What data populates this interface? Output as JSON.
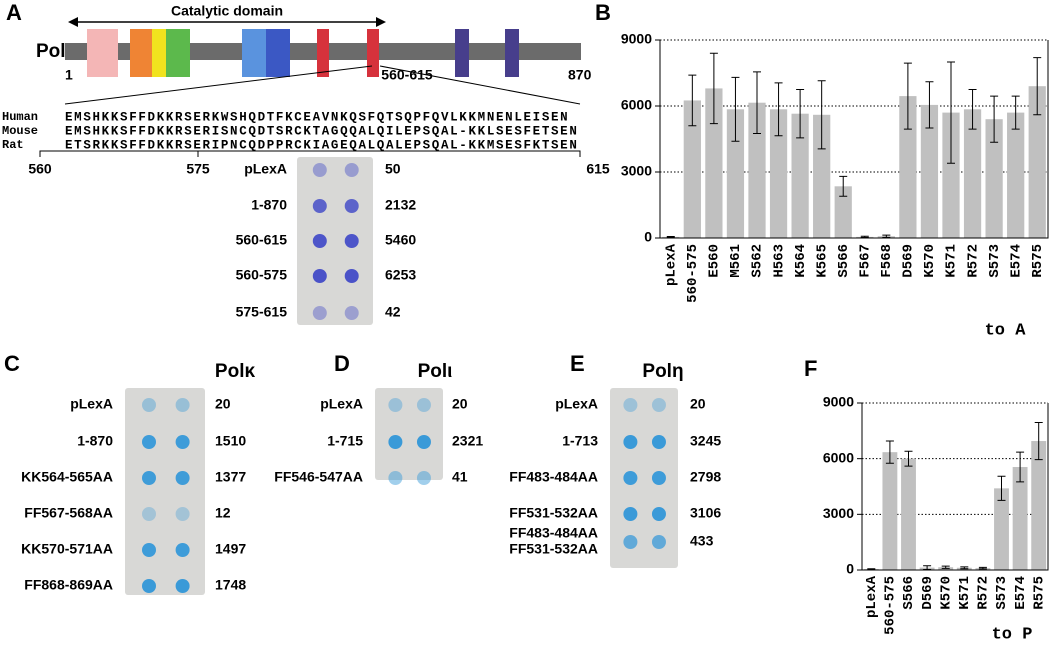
{
  "chart_data": [
    {
      "type": "bar",
      "panel_label": "B",
      "categories": [
        "pLexA",
        "560-575",
        "E560",
        "M561",
        "S562",
        "H563",
        "K564",
        "K565",
        "S566",
        "F567",
        "F568",
        "D569",
        "K570",
        "K571",
        "R572",
        "S573",
        "E574",
        "R575"
      ],
      "values": [
        50,
        6253,
        6800,
        5850,
        6150,
        5850,
        5650,
        5600,
        2350,
        50,
        80,
        6450,
        6050,
        5700,
        5850,
        5400,
        5700,
        6900
      ],
      "errors": [
        20,
        1150,
        1600,
        1450,
        1400,
        1200,
        1100,
        1550,
        450,
        30,
        50,
        1500,
        1050,
        2300,
        900,
        1050,
        750,
        1300
      ],
      "color": "#c0c0c0",
      "ylim": [
        0,
        9000
      ],
      "yticks": [
        0,
        3000,
        6000,
        9000
      ],
      "grid": true,
      "annotation": "to A"
    },
    {
      "type": "bar",
      "panel_label": "F",
      "categories": [
        "pLexA",
        "560-575",
        "S566",
        "D569",
        "K570",
        "K571",
        "R572",
        "S573",
        "E574",
        "R575"
      ],
      "values": [
        50,
        6350,
        6000,
        130,
        150,
        120,
        100,
        4400,
        5550,
        6950
      ],
      "errors": [
        20,
        600,
        400,
        100,
        60,
        50,
        40,
        650,
        800,
        1000
      ],
      "color": "#c0c0c0",
      "ylim": [
        0,
        9000
      ],
      "yticks": [
        0,
        3000,
        6000,
        9000
      ],
      "grid": true,
      "annotation": "to P"
    }
  ],
  "panel_a": {
    "label": "A",
    "protein": "Polκ",
    "domain_label": "Catalytic domain",
    "start": "1",
    "end": "870",
    "region": "560-615",
    "alignment": {
      "species": [
        "Human",
        "Mouse",
        "Rat"
      ],
      "sequences": [
        "EMSHKKSFFDKKRSERKWSHQDTFKCEAVNKQSFQTSQPFQVLKKMNENLEISEN",
        "EMSHKKSFFDKKRSERISNCQDTSRCKTAGQQALQILEPSQAL-KKLSESFETSEN",
        "ETSRKKSFFDKKRSERIPNCQDPPRCKIAGEQALQALEPSQAL-KKMSESFKTSEN"
      ]
    },
    "positions": [
      "560",
      "575",
      "615"
    ],
    "constructs": [
      "pLexA",
      "1-870",
      "560-615",
      "560-575",
      "575-615"
    ],
    "values": [
      50,
      2132,
      5460,
      6253,
      42
    ]
  },
  "panel_c": {
    "label": "C",
    "title": "Polκ",
    "constructs": [
      "pLexA",
      "1-870",
      "KK564-565AA",
      "FF567-568AA",
      "KK570-571AA",
      "FF868-869AA"
    ],
    "values": [
      20,
      1510,
      1377,
      12,
      1497,
      1748
    ]
  },
  "panel_d": {
    "label": "D",
    "title": "Polι",
    "constructs": [
      "pLexA",
      "1-715",
      "FF546-547AA"
    ],
    "values": [
      20,
      2321,
      41
    ]
  },
  "panel_e": {
    "label": "E",
    "title": "Polη",
    "constructs": [
      "pLexA",
      "1-713",
      "FF483-484AA",
      "FF531-532AA",
      [
        "FF483-484AA",
        "FF531-532AA"
      ]
    ],
    "values": [
      20,
      3245,
      2798,
      3106,
      433
    ]
  }
}
